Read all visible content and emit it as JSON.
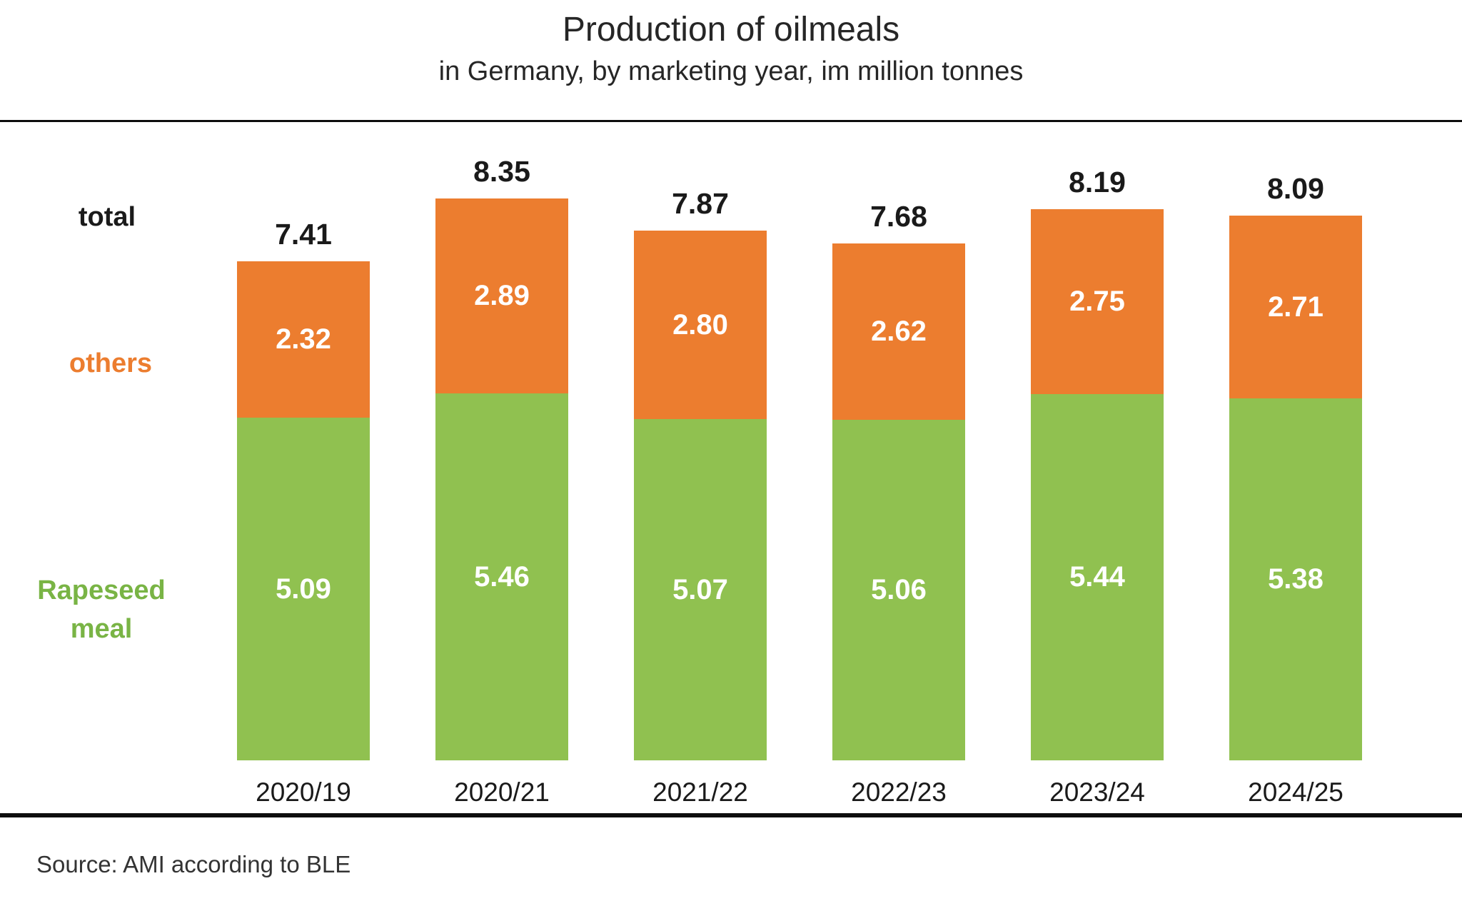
{
  "header": {
    "title": "Production of oilmeals",
    "subtitle": "in Germany, by marketing year, im million tonnes"
  },
  "series_labels": {
    "total": "total",
    "others": "others",
    "rapeseed_line1": "Rapeseed",
    "rapeseed_line2": "meal"
  },
  "source": "Source: AMI according to BLE",
  "colors": {
    "others_bar": "#EC7D2F",
    "rapeseed_bar": "#90C150",
    "others_label_text": "#EC7D2F",
    "rapeseed_label_text": "#79B445",
    "total_text": "#1a1a1a",
    "value_text_on_bar": "#ffffff"
  },
  "chart_data": {
    "type": "bar",
    "stacked": true,
    "title": "Production of oilmeals",
    "subtitle": "in Germany, by marketing year, im million tonnes",
    "unit": "million tonnes",
    "categories": [
      "2020/19",
      "2020/21",
      "2021/22",
      "2022/23",
      "2023/24",
      "2024/25"
    ],
    "series": [
      {
        "name": "Rapeseed meal",
        "color": "#90C150",
        "values": [
          5.09,
          5.46,
          5.07,
          5.06,
          5.44,
          5.38
        ]
      },
      {
        "name": "others",
        "color": "#EC7D2F",
        "values": [
          2.32,
          2.89,
          2.8,
          2.62,
          2.75,
          2.71
        ]
      }
    ],
    "totals": [
      7.41,
      8.35,
      7.87,
      7.68,
      8.19,
      8.09
    ],
    "value_labels": true,
    "legend_position": "left",
    "grid": false,
    "y_axis_visible": false
  }
}
